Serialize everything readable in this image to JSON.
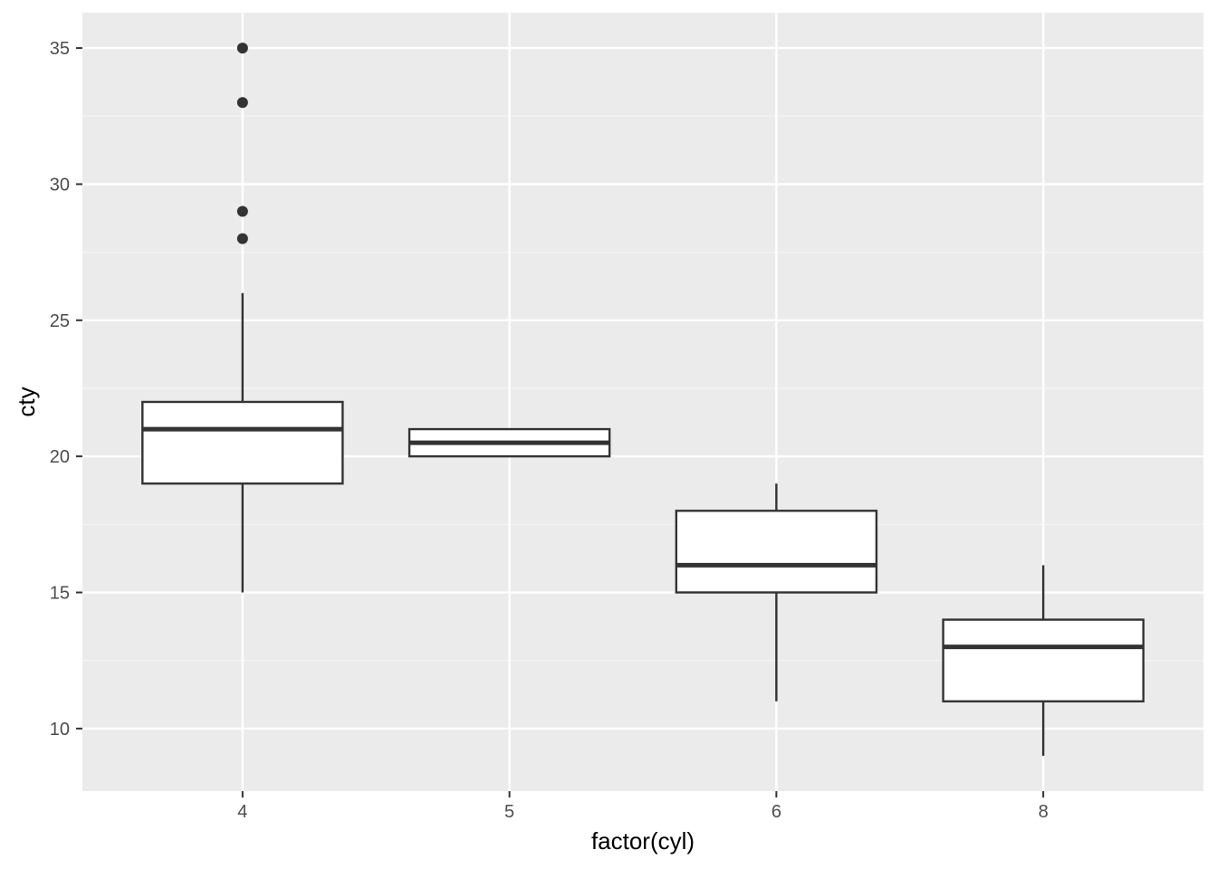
{
  "chart_data": {
    "type": "boxplot",
    "title": "",
    "xlabel": "factor(cyl)",
    "ylabel": "cty",
    "categories": [
      "4",
      "5",
      "6",
      "8"
    ],
    "ylim": [
      7.7,
      36.3
    ],
    "yticks": [
      10,
      15,
      20,
      25,
      30,
      35
    ],
    "ytick_labels": [
      "10",
      "15",
      "20",
      "25",
      "30",
      "35"
    ],
    "grid": true,
    "legend": "none",
    "boxes": [
      {
        "category": "4",
        "whisker_low": 15,
        "q1": 19,
        "median": 21,
        "q3": 22,
        "whisker_high": 26,
        "outliers": [
          28,
          29,
          33,
          35
        ]
      },
      {
        "category": "5",
        "whisker_low": 20,
        "q1": 20,
        "median": 20.5,
        "q3": 21,
        "whisker_high": 21,
        "outliers": []
      },
      {
        "category": "6",
        "whisker_low": 11,
        "q1": 15,
        "median": 16,
        "q3": 18,
        "whisker_high": 19,
        "outliers": []
      },
      {
        "category": "8",
        "whisker_low": 9,
        "q1": 11,
        "median": 13,
        "q3": 14,
        "whisker_high": 16,
        "outliers": []
      }
    ],
    "colors": {
      "panel": "#ebebeb",
      "grid_major": "#ffffff",
      "grid_minor": "#f5f5f5",
      "box_fill": "#ffffff",
      "box_line": "#333333",
      "outlier": "#333333",
      "tick": "#333333"
    }
  }
}
